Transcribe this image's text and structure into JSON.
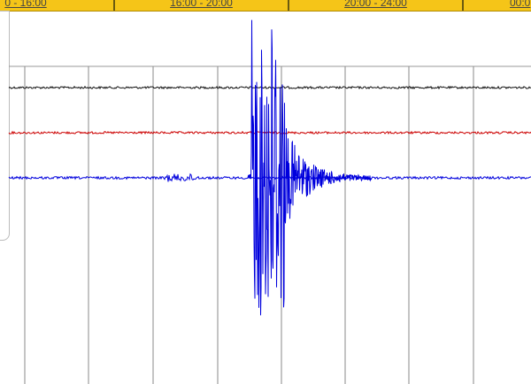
{
  "tabs": [
    "0 - 16:00",
    "16:00 - 20:00",
    "20:00 - 24:00",
    "00:0"
  ]
}
